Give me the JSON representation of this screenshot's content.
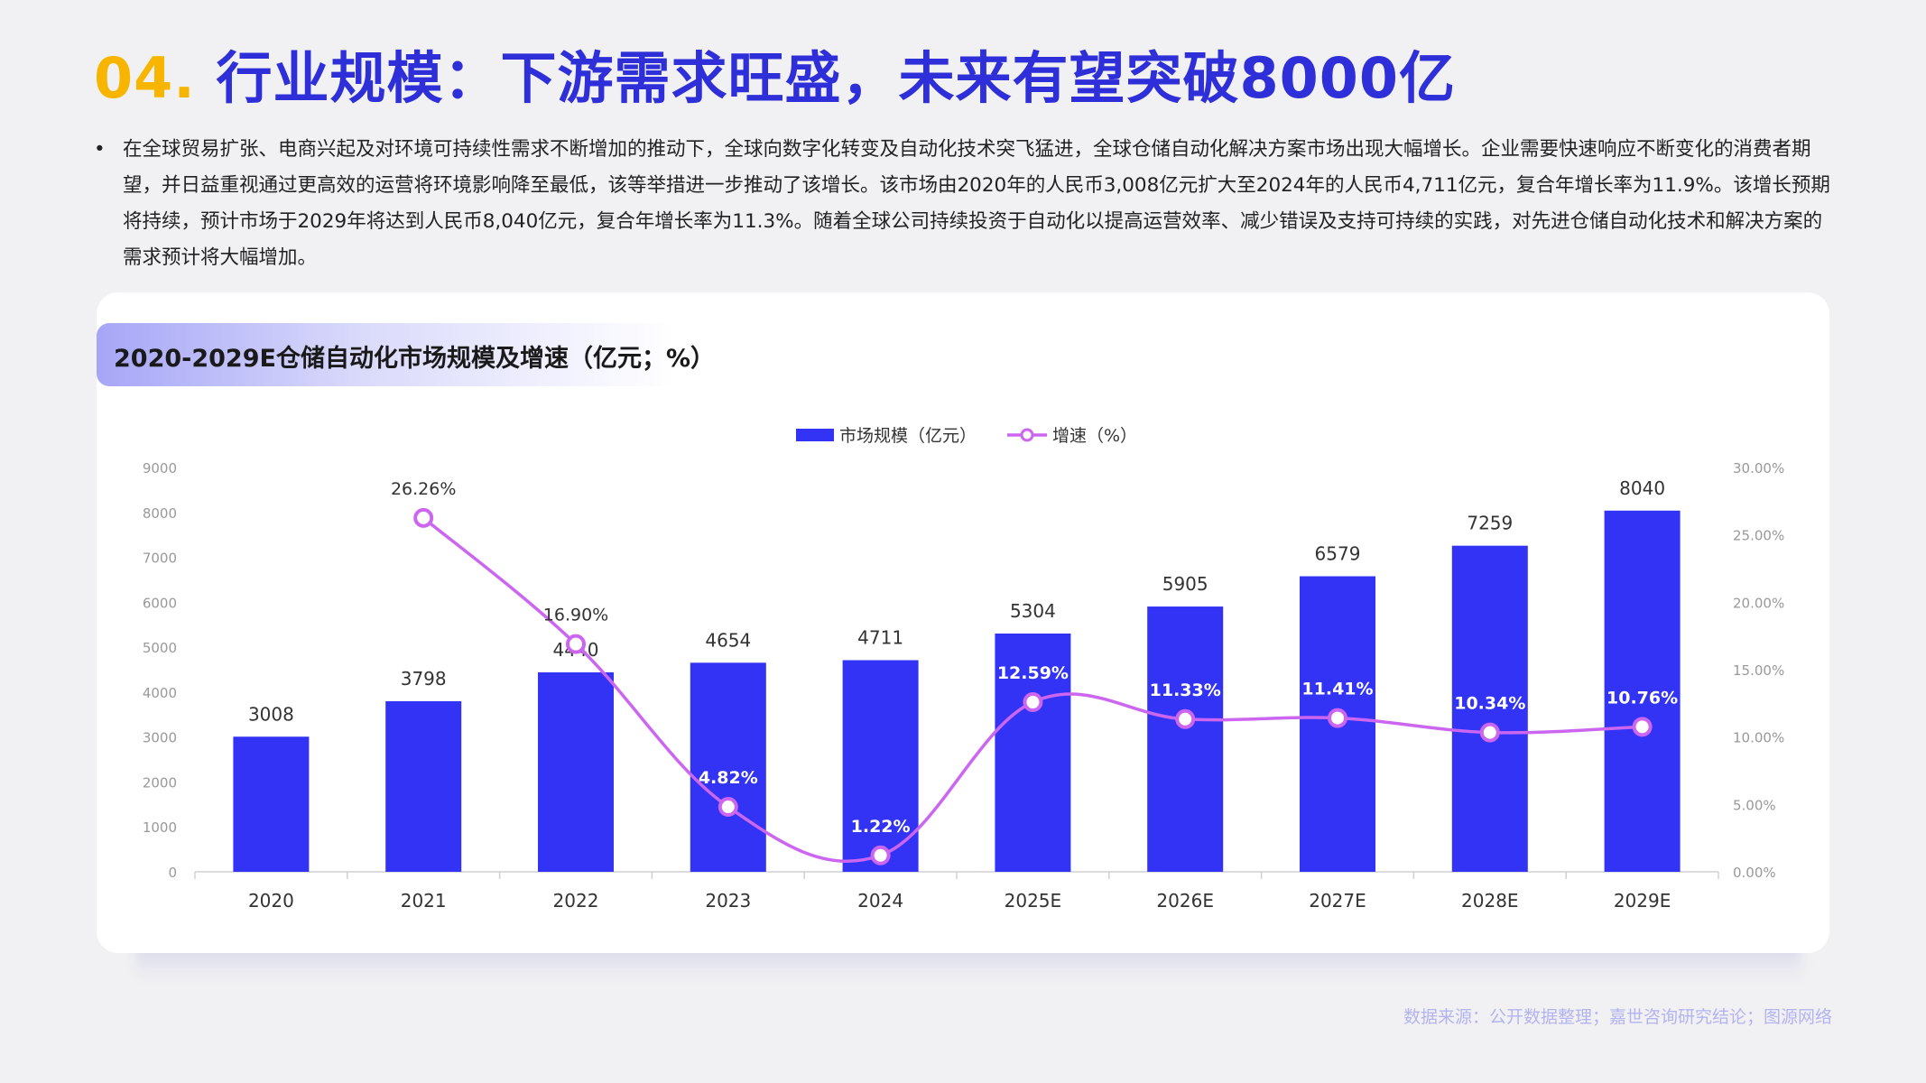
{
  "header": {
    "number": "04.",
    "title": "行业规模：下游需求旺盛，未来有望突破8000亿"
  },
  "bullet": {
    "marker": "•",
    "text": "在全球贸易扩张、电商兴起及对环境可持续性需求不断增加的推动下，全球向数字化转变及自动化技术突飞猛进，全球仓储自动化解决方案市场出现大幅增长。企业需要快速响应不断变化的消费者期望，并日益重视通过更高效的运营将环境影响降至最低，该等举措进一步推动了该增长。该市场由2020年的人民币3,008亿元扩大至2024年的人民币4,711亿元，复合年增长率为11.9%。该增长预期将持续，预计市场于2029年将达到人民币8,040亿元，复合年增长率为11.3%。随着全球公司持续投资于自动化以提高运营效率、减少错误及支持可持续的实践，对先进仓储自动化技术和解决方案的需求预计将大幅增加。"
  },
  "source": "数据来源：公开数据整理；嘉世咨询研究结论；图源网络",
  "colors": {
    "bar": "#3333f5",
    "line": "#cc66f0",
    "title_number": "#f7b500",
    "title_text": "#2f2fd9"
  },
  "chart_data": {
    "type": "bar",
    "title": "2020-2029E仓储自动化市场规模及增速（亿元；%）",
    "categories": [
      "2020",
      "2021",
      "2022",
      "2023",
      "2024",
      "2025E",
      "2026E",
      "2027E",
      "2028E",
      "2029E"
    ],
    "series": [
      {
        "name": "市场规模（亿元）",
        "type": "bar",
        "axis": "left",
        "values": [
          3008,
          3798,
          4440,
          4654,
          4711,
          5304,
          5905,
          6579,
          7259,
          8040
        ],
        "labels": [
          "3008",
          "3798",
          "4440",
          "4654",
          "4711",
          "5304",
          "5905",
          "6579",
          "7259",
          "8040"
        ]
      },
      {
        "name": "增速（%）",
        "type": "line",
        "axis": "right",
        "values": [
          null,
          26.26,
          16.9,
          4.82,
          1.22,
          12.59,
          11.33,
          11.41,
          10.34,
          10.76
        ],
        "labels": [
          "",
          "26.26%",
          "16.90%",
          "4.82%",
          "1.22%",
          "12.59%",
          "11.33%",
          "11.41%",
          "10.34%",
          "10.76%"
        ]
      }
    ],
    "y_left": {
      "range": [
        0,
        9000
      ],
      "ticks": [
        0,
        1000,
        2000,
        3000,
        4000,
        5000,
        6000,
        7000,
        8000,
        9000
      ],
      "tick_labels": [
        "0",
        "1000",
        "2000",
        "3000",
        "4000",
        "5000",
        "6000",
        "7000",
        "8000",
        "9000"
      ]
    },
    "y_right": {
      "range": [
        0,
        30
      ],
      "ticks": [
        0,
        5,
        10,
        15,
        20,
        25,
        30
      ],
      "tick_labels": [
        "0.00%",
        "5.00%",
        "10.00%",
        "15.00%",
        "20.00%",
        "25.00%",
        "30.00%"
      ]
    },
    "legend_position": "top-center",
    "grid": false
  }
}
